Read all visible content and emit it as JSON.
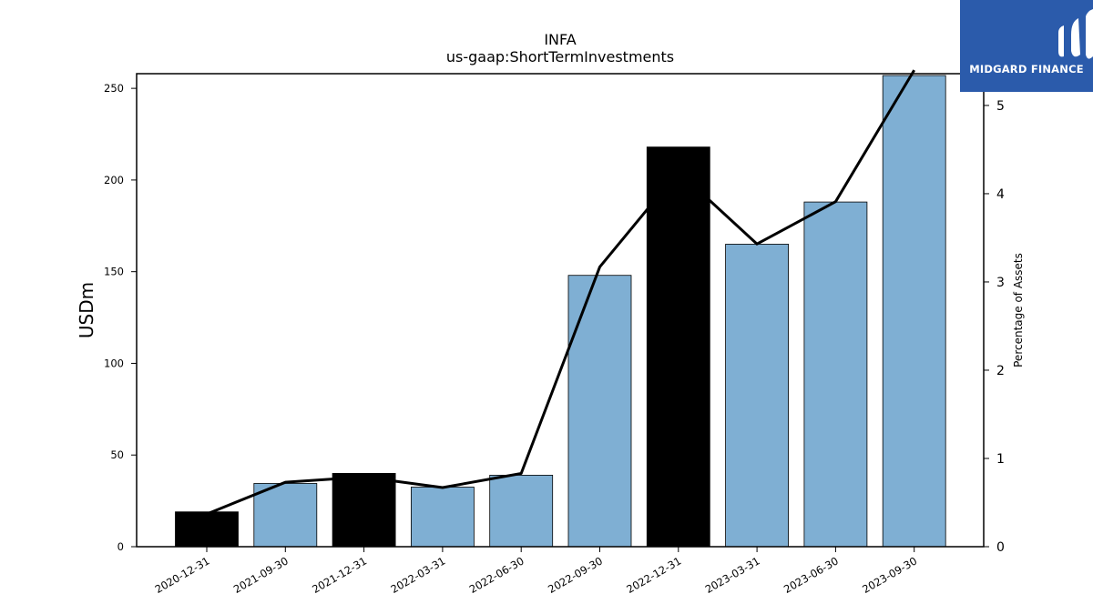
{
  "chart_data": {
    "type": "bar",
    "title": "INFA",
    "subtitle": "us-gaap:ShortTermInvestments",
    "ylabel": "USDm",
    "y2label": "Percentage of Assets",
    "categories": [
      "2020-12-31",
      "2021-09-30",
      "2021-12-31",
      "2022-03-31",
      "2022-06-30",
      "2022-09-30",
      "2022-12-31",
      "2023-03-31",
      "2023-06-30",
      "2023-09-30"
    ],
    "values": [
      19,
      34.5,
      40,
      32.5,
      39,
      148,
      218,
      165,
      188,
      257
    ],
    "bar_colors": [
      "#000000",
      "#7fafd3",
      "#000000",
      "#7fafd3",
      "#7fafd3",
      "#7fafd3",
      "#000000",
      "#7fafd3",
      "#7fafd3",
      "#7fafd3"
    ],
    "line_series": {
      "axis": "right",
      "values": [
        0.37,
        0.73,
        0.79,
        0.67,
        0.83,
        3.17,
        4.25,
        3.43,
        3.91,
        5.4
      ]
    },
    "ylim": [
      0,
      258
    ],
    "y2lim": [
      0,
      5.36
    ],
    "yticks": [
      0,
      50,
      100,
      150,
      200,
      250
    ],
    "y2ticks": [
      0,
      1,
      2,
      3,
      4,
      5
    ],
    "grid": false,
    "legend": "none"
  },
  "logo": {
    "text": "MIDGARD FINANCE",
    "color": "#2b5bab"
  }
}
